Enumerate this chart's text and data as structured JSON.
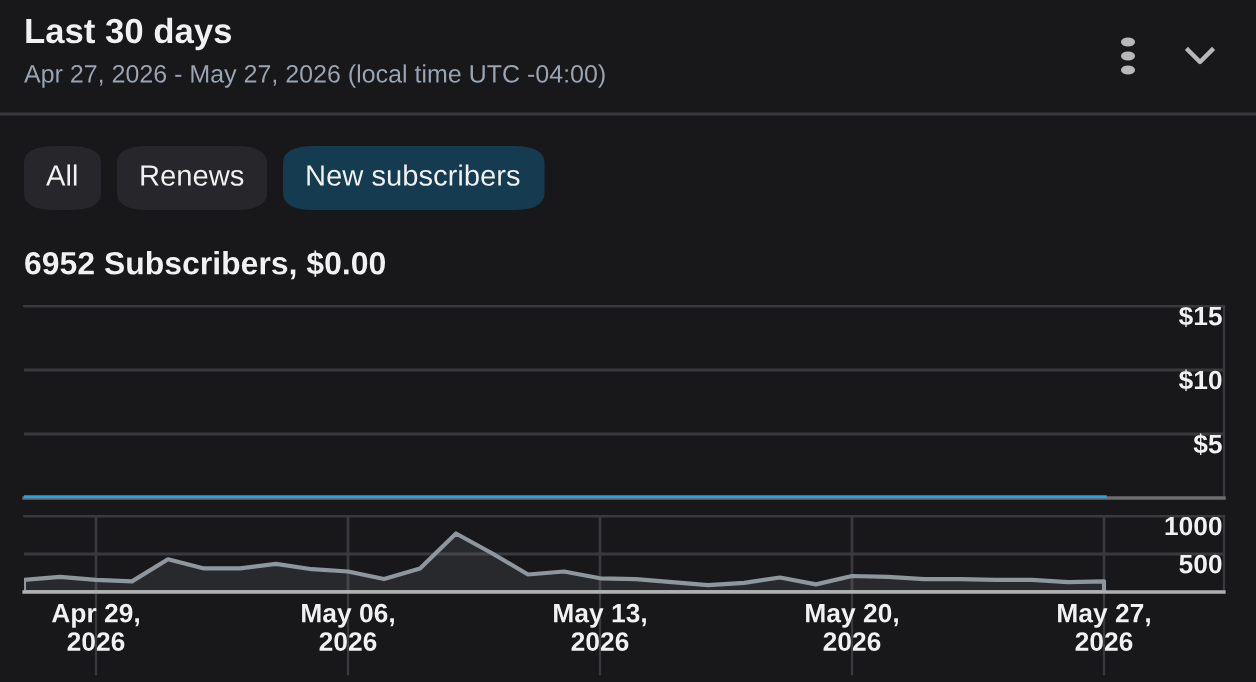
{
  "chart_data": [
    {
      "type": "line",
      "title": "Last 30 days",
      "subtitle": "Apr 27, 2026 - May 27, 2026 (local time UTC -04:00)",
      "annotations": [
        "All",
        "Renews",
        "New subscribers",
        "6952 Subscribers, $0.00"
      ],
      "x": [
        "2026-04-27",
        "2026-04-28",
        "2026-04-29",
        "2026-04-30",
        "2026-05-01",
        "2026-05-02",
        "2026-05-03",
        "2026-05-04",
        "2026-05-05",
        "2026-05-06",
        "2026-05-07",
        "2026-05-08",
        "2026-05-09",
        "2026-05-10",
        "2026-05-11",
        "2026-05-12",
        "2026-05-13",
        "2026-05-14",
        "2026-05-15",
        "2026-05-16",
        "2026-05-17",
        "2026-05-18",
        "2026-05-19",
        "2026-05-20",
        "2026-05-21",
        "2026-05-22",
        "2026-05-23",
        "2026-05-24",
        "2026-05-25",
        "2026-05-26",
        "2026-05-27"
      ],
      "series": [
        {
          "color": "#1ea7e6",
          "values": [
            0,
            0,
            0,
            0,
            0,
            0,
            0,
            0,
            0,
            0,
            0,
            0,
            0,
            0,
            0,
            0,
            0,
            0,
            0,
            0,
            0,
            0,
            0,
            0,
            0,
            0,
            0,
            0,
            0,
            0,
            0
          ]
        }
      ],
      "xlim": [
        "2026-04-27",
        "2026-05-30T08:00"
      ],
      "ylim": [
        0,
        15
      ],
      "yticks": [
        {
          "value": 5,
          "label": "$5"
        },
        {
          "value": 10,
          "label": "$10"
        },
        {
          "value": 15,
          "label": "$15"
        }
      ],
      "grid": true,
      "tick_labels": "y"
    },
    {
      "type": "area",
      "x": [
        "2026-04-27",
        "2026-04-28",
        "2026-04-29",
        "2026-04-30",
        "2026-05-01",
        "2026-05-02",
        "2026-05-03",
        "2026-05-04",
        "2026-05-05",
        "2026-05-06",
        "2026-05-07",
        "2026-05-08",
        "2026-05-09",
        "2026-05-10",
        "2026-05-11",
        "2026-05-12",
        "2026-05-13",
        "2026-05-14",
        "2026-05-15",
        "2026-05-16",
        "2026-05-17",
        "2026-05-18",
        "2026-05-19",
        "2026-05-20",
        "2026-05-21",
        "2026-05-22",
        "2026-05-23",
        "2026-05-24",
        "2026-05-25",
        "2026-05-26",
        "2026-05-27"
      ],
      "series": [
        {
          "color": "#8e969e",
          "values": [
            160,
            200,
            160,
            140,
            430,
            310,
            310,
            370,
            300,
            270,
            170,
            310,
            770,
            510,
            230,
            270,
            180,
            170,
            130,
            90,
            120,
            190,
            100,
            210,
            200,
            170,
            170,
            160,
            160,
            130,
            140
          ]
        }
      ],
      "xlim": [
        "2026-04-27",
        "2026-05-30T08:00"
      ],
      "xticks": [
        {
          "value": "2026-04-29",
          "label": "Apr 29,\n2026"
        },
        {
          "value": "2026-05-06",
          "label": "May 06,\n2026"
        },
        {
          "value": "2026-05-13",
          "label": "May 13,\n2026"
        },
        {
          "value": "2026-05-20",
          "label": "May 20,\n2026"
        },
        {
          "value": "2026-05-27",
          "label": "May 27,\n2026"
        }
      ],
      "ylim": [
        0,
        1000
      ],
      "yticks": [
        500,
        1000
      ],
      "grid": true
    }
  ]
}
